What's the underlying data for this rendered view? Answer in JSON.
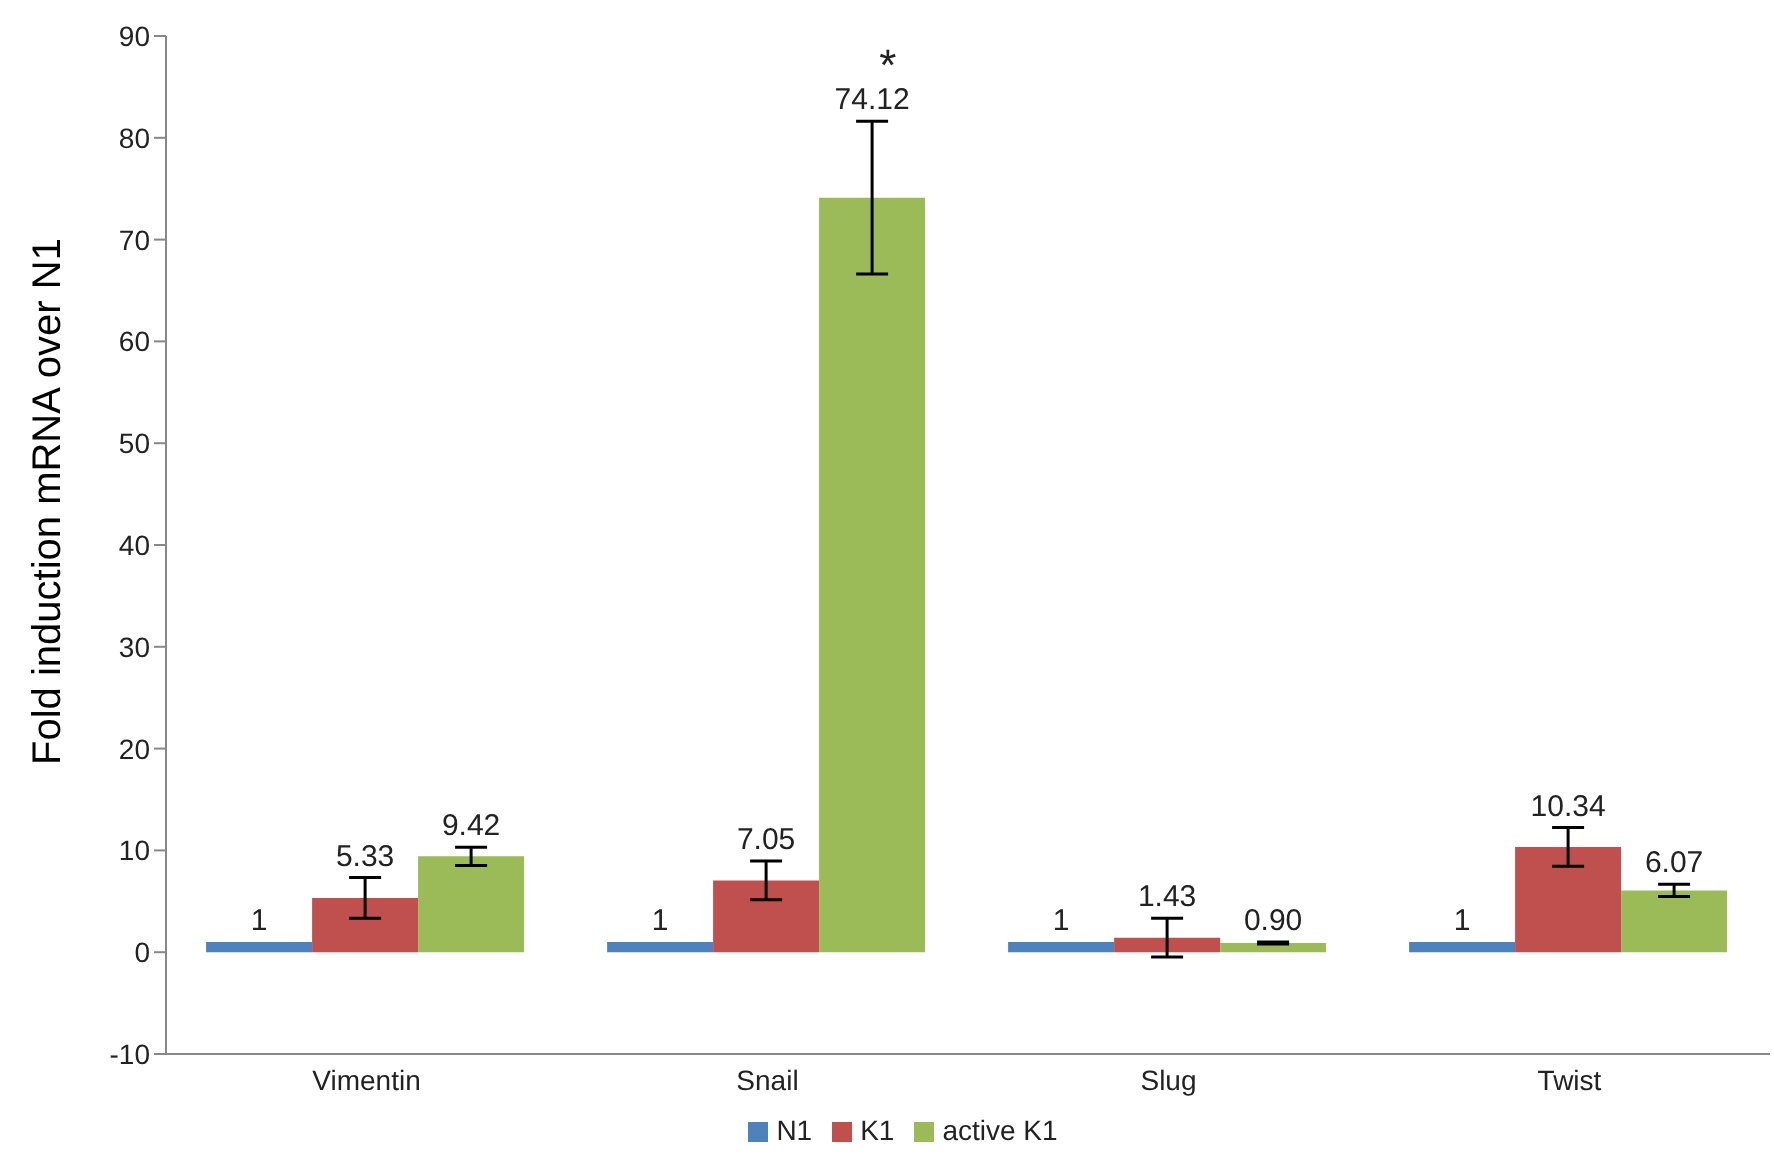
{
  "chart_data": {
    "type": "bar",
    "ylabel": "Fold induction mRNA over N1",
    "categories": [
      "Vimentin",
      "Snail",
      "Slug",
      "Twist"
    ],
    "series": [
      {
        "name": "N1",
        "color": "#4f81bd",
        "values": [
          1,
          1,
          1,
          1
        ],
        "value_labels": [
          "1",
          "1",
          "1",
          "1"
        ]
      },
      {
        "name": "K1",
        "color": "#c0504d",
        "values": [
          5.33,
          7.05,
          1.43,
          10.34
        ],
        "value_labels": [
          "5.33",
          "7.05",
          "1.43",
          "10.34"
        ],
        "errors": [
          2,
          1.9,
          1.9,
          1.9
        ]
      },
      {
        "name": "active K1",
        "color": "#9bbb59",
        "values": [
          9.42,
          74.12,
          0.9,
          6.07
        ],
        "value_labels": [
          "9.42",
          "74.12",
          "0.90",
          "6.07"
        ],
        "errors": [
          0.9,
          7.5,
          0.1,
          0.6
        ]
      }
    ],
    "annotations": [
      "*"
    ],
    "ylim": [
      -10,
      90
    ],
    "yticks": [
      -10,
      0,
      10,
      20,
      30,
      40,
      50,
      60,
      70,
      80,
      90
    ],
    "grid": false,
    "legend": "bottom"
  }
}
